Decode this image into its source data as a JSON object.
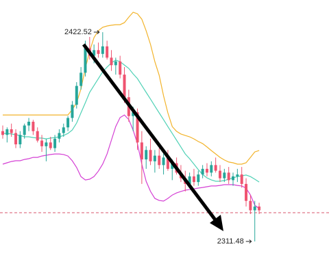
{
  "chart_data": {
    "type": "candlestick",
    "ylim": [
      2292.6,
      2439.6
    ],
    "up_color": "#26a69a",
    "down_color": "#ef5370",
    "open": [
      2370,
      2368,
      2371,
      2369,
      2363,
      2368,
      2373,
      2375,
      2370,
      2365,
      2362,
      2364,
      2361,
      2366,
      2369,
      2372,
      2377,
      2384,
      2394,
      2401,
      2414,
      2410,
      2413,
      2411,
      2415,
      2409,
      2405,
      2407,
      2400,
      2388,
      2378,
      2380,
      2364,
      2355,
      2360,
      2354,
      2357,
      2352,
      2356,
      2350,
      2353,
      2348,
      2345,
      2342,
      2346,
      2343,
      2347,
      2350,
      2348,
      2352,
      2349,
      2345,
      2348,
      2344,
      2346,
      2347,
      2342,
      2333,
      2328,
      2330
    ],
    "high": [
      2373,
      2372,
      2374,
      2371,
      2370,
      2374,
      2377,
      2376,
      2372,
      2368,
      2366,
      2367,
      2368,
      2371,
      2374,
      2378,
      2386,
      2396,
      2404,
      2418,
      2420,
      2416,
      2417,
      2422.52,
      2418,
      2413,
      2409,
      2410,
      2404,
      2392,
      2383,
      2382,
      2370,
      2362,
      2366,
      2360,
      2361,
      2358,
      2360,
      2355,
      2356,
      2352,
      2349,
      2348,
      2350,
      2349,
      2352,
      2353,
      2354,
      2356,
      2352,
      2350,
      2351,
      2348,
      2350,
      2351,
      2345,
      2336,
      2333,
      2332
    ],
    "low": [
      2366,
      2364,
      2367,
      2361,
      2361,
      2366,
      2370,
      2368,
      2364,
      2359,
      2354,
      2360,
      2359,
      2364,
      2367,
      2370,
      2375,
      2382,
      2392,
      2399,
      2408,
      2406,
      2409,
      2409,
      2408,
      2402,
      2400,
      2398,
      2385,
      2375,
      2370,
      2360,
      2342,
      2350,
      2352,
      2348,
      2350,
      2347,
      2349,
      2344,
      2347,
      2343,
      2338,
      2340,
      2341,
      2341,
      2345,
      2346,
      2346,
      2348,
      2343,
      2343,
      2342,
      2341,
      2343,
      2340,
      2330,
      2326,
      2311.48,
      2326
    ],
    "close": [
      2368,
      2371,
      2369,
      2363,
      2368,
      2373,
      2375,
      2370,
      2365,
      2362,
      2364,
      2361,
      2366,
      2369,
      2372,
      2377,
      2384,
      2394,
      2401,
      2414,
      2410,
      2413,
      2411,
      2415,
      2409,
      2405,
      2407,
      2400,
      2388,
      2378,
      2380,
      2364,
      2355,
      2360,
      2354,
      2357,
      2352,
      2356,
      2350,
      2353,
      2348,
      2345,
      2342,
      2346,
      2343,
      2347,
      2350,
      2348,
      2352,
      2349,
      2345,
      2348,
      2344,
      2346,
      2347,
      2342,
      2333,
      2328,
      2330,
      2328
    ],
    "bands": [
      {
        "color": "#f2b32a",
        "values": [
          2378.6,
          2378.6,
          2378.6,
          2378.6,
          2378.6,
          2378.6,
          2378.6,
          2378.6,
          2378.6,
          2378.6,
          2378.6,
          2378.6,
          2378.6,
          2378.6,
          2378.6,
          2378.6,
          2381.5,
          2385.1,
          2392.4,
          2403.3,
          2412.4,
          2419.6,
          2423.3,
          2425.1,
          2425.8,
          2426.2,
          2426.5,
          2426.5,
          2427.6,
          2430.5,
          2433.1,
          2432.3,
          2429.4,
          2423.3,
          2416.0,
          2406.9,
          2399.7,
          2388.8,
          2379.7,
          2372.4,
          2369.9,
          2368.5,
          2367.7,
          2367.0,
          2365.9,
          2364.5,
          2363.4,
          2361.6,
          2359.7,
          2357.9,
          2356.1,
          2354.7,
          2353.6,
          2353.2,
          2352.5,
          2352.5,
          2353.2,
          2356.1,
          2359.0,
          2359.7
        ]
      },
      {
        "color": "#4fd1b5",
        "values": [
          2368.8,
          2368.8,
          2368.5,
          2368.1,
          2367.7,
          2367.0,
          2367.0,
          2366.6,
          2366.3,
          2366.3,
          2365.9,
          2366.3,
          2366.6,
          2367.0,
          2367.7,
          2368.8,
          2370.6,
          2374.3,
          2379.7,
          2385.1,
          2390.6,
          2394.2,
          2397.9,
          2401.5,
          2404.0,
          2406.2,
          2407.7,
          2406.9,
          2405.1,
          2403.3,
          2400.4,
          2397.9,
          2394.2,
          2390.6,
          2387.0,
          2383.3,
          2379.7,
          2376.1,
          2372.4,
          2368.8,
          2365.2,
          2361.6,
          2357.9,
          2355.4,
          2352.5,
          2349.6,
          2347.0,
          2345.2,
          2344.1,
          2343.4,
          2343.4,
          2343.8,
          2344.5,
          2345.2,
          2345.9,
          2346.3,
          2346.7,
          2345.9,
          2344.5,
          2343.0
        ]
      },
      {
        "color": "#d43fd4",
        "values": [
          2352.5,
          2353.2,
          2353.9,
          2354.3,
          2354.3,
          2355.0,
          2355.4,
          2356.1,
          2356.1,
          2356.8,
          2357.2,
          2357.6,
          2357.9,
          2357.9,
          2357.6,
          2356.8,
          2354.3,
          2350.7,
          2345.9,
          2344.1,
          2344.5,
          2345.9,
          2348.8,
          2352.5,
          2357.9,
          2365.2,
          2372.4,
          2377.2,
          2378.6,
          2376.1,
          2370.6,
          2363.4,
          2352.5,
          2343.4,
          2338.0,
          2334.3,
          2333.2,
          2332.9,
          2334.3,
          2336.1,
          2337.2,
          2338.0,
          2338.7,
          2339.0,
          2339.4,
          2339.8,
          2340.1,
          2340.5,
          2340.9,
          2340.9,
          2341.2,
          2341.6,
          2341.6,
          2341.6,
          2341.2,
          2340.9,
          2339.8,
          2336.1,
          2330.7,
          2328.9
        ]
      }
    ],
    "price_line": 2326.7,
    "price_line_color": "#d9556b",
    "high_label": "2422.52",
    "low_label": "2311.48"
  }
}
